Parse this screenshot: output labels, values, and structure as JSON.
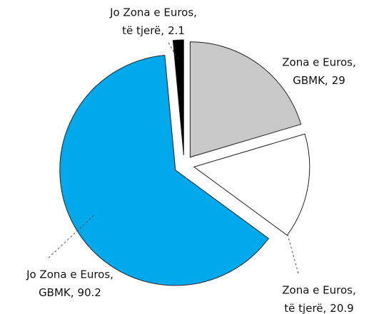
{
  "chart_data": {
    "type": "pie",
    "categories": [
      [
        "Zona e Euros,",
        "GBMK,"
      ],
      [
        "Zona e Euros,",
        "të tjerë,"
      ],
      [
        "Jo Zona e Euros,",
        "GBMK,"
      ],
      [
        "Jo Zona e Euros,",
        "të tjerë,"
      ]
    ],
    "values": [
      29,
      20.9,
      90.2,
      2.1
    ],
    "colors": [
      "#c8c8c8",
      "#ffffff",
      "#00a8ec",
      "#000000"
    ]
  }
}
